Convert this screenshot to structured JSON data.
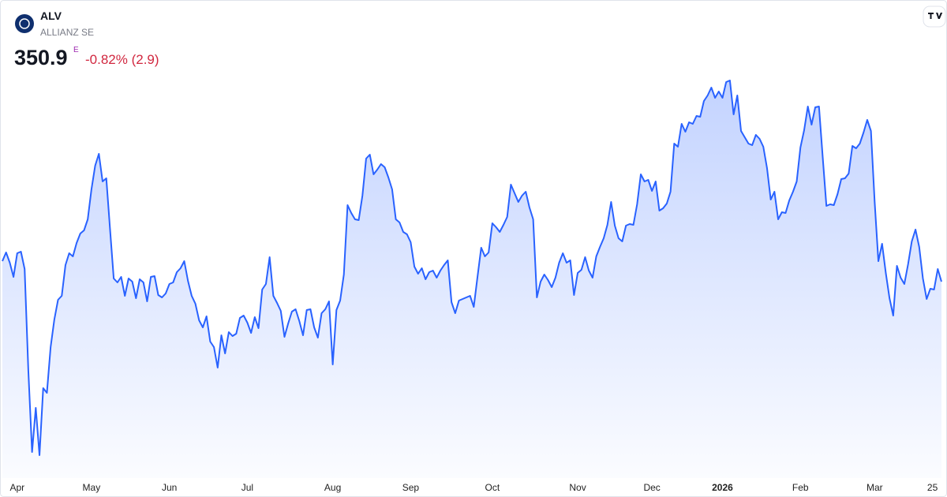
{
  "chart_data": {
    "type": "area",
    "title": "ALV",
    "subtitle": "ALLIANZ SE",
    "last_price": 350.9,
    "price_flag": "E",
    "change": "-0.82% (2.9)",
    "series": [
      {
        "color": "#2962ff",
        "values": [
          356.1,
          358.3,
          355.7,
          352.1,
          358.1,
          358.5,
          354.1,
          328.3,
          307.7,
          318.9,
          306.9,
          323.9,
          322.7,
          334.3,
          341.3,
          346.3,
          347.3,
          355.1,
          358.1,
          357.3,
          360.7,
          363.1,
          363.9,
          366.7,
          374.3,
          380.3,
          383.3,
          376.3,
          377.1,
          364.3,
          351.7,
          350.7,
          352.1,
          347.3,
          351.7,
          350.9,
          346.7,
          351.5,
          350.7,
          345.9,
          352.1,
          352.3,
          347.5,
          346.9,
          347.9,
          350.3,
          350.7,
          353.3,
          354.3,
          356.1,
          351.1,
          347.3,
          345.3,
          341.1,
          339.3,
          342.1,
          335.7,
          334.3,
          329.1,
          337.3,
          332.7,
          338.1,
          337.1,
          337.7,
          341.7,
          342.3,
          340.5,
          337.9,
          341.9,
          339.1,
          348.9,
          350.3,
          357.1,
          347.3,
          345.5,
          343.5,
          336.9,
          340.3,
          343.3,
          343.9,
          340.9,
          337.3,
          343.7,
          343.9,
          339.3,
          336.7,
          342.9,
          343.9,
          345.9,
          329.9,
          343.7,
          346.1,
          352.7,
          370.3,
          368.3,
          366.7,
          366.5,
          372.7,
          382.1,
          383.1,
          378.1,
          379.3,
          380.7,
          379.9,
          377.3,
          374.3,
          366.7,
          365.9,
          363.5,
          362.9,
          360.9,
          354.7,
          352.9,
          354.3,
          351.5,
          353.3,
          353.7,
          351.9,
          353.7,
          355.1,
          356.3,
          345.7,
          342.9,
          346.1,
          346.5,
          346.9,
          347.3,
          344.5,
          352.1,
          359.5,
          357.3,
          358.3,
          365.7,
          364.7,
          363.5,
          365.3,
          367.3,
          375.5,
          373.3,
          371.1,
          372.7,
          373.7,
          369.7,
          366.7,
          346.9,
          350.9,
          352.7,
          351.3,
          349.5,
          351.9,
          355.7,
          358.1,
          355.7,
          356.3,
          347.5,
          353.1,
          353.9,
          357.1,
          353.7,
          351.9,
          357.3,
          359.7,
          361.9,
          365.3,
          371.1,
          365.1,
          361.9,
          361.1,
          365.1,
          365.5,
          365.3,
          370.5,
          378.1,
          376.3,
          376.7,
          373.9,
          376.3,
          368.9,
          369.5,
          370.7,
          373.7,
          385.9,
          385.1,
          390.9,
          388.9,
          391.3,
          390.9,
          392.9,
          392.7,
          396.7,
          398.1,
          400.1,
          397.5,
          399.1,
          397.5,
          401.5,
          401.9,
          393.3,
          398.1,
          389.1,
          387.5,
          385.9,
          385.5,
          388.1,
          387.1,
          385.1,
          379.7,
          371.7,
          373.7,
          366.7,
          368.5,
          368.3,
          371.5,
          373.7,
          376.3,
          384.9,
          389.3,
          395.3,
          390.7,
          395.1,
          395.3,
          382.5,
          370.1,
          370.5,
          370.3,
          373.1,
          376.9,
          377.1,
          378.3,
          385.3,
          384.7,
          385.9,
          388.7,
          391.9,
          389.1,
          371.1,
          356.1,
          360.5,
          353.1,
          346.7,
          342.3,
          354.9,
          351.9,
          350.3,
          355.3,
          361.1,
          364.1,
          359.7,
          351.7,
          346.5,
          349.1,
          348.9,
          354.1,
          350.9
        ]
      }
    ],
    "ylim": [
      302.3,
      404.3
    ],
    "xticks": [
      {
        "value": 4,
        "label": "Apr"
      },
      {
        "value": 24,
        "label": "May"
      },
      {
        "value": 45,
        "label": "Jun"
      },
      {
        "value": 66,
        "label": "Jul"
      },
      {
        "value": 89,
        "label": "Aug"
      },
      {
        "value": 110,
        "label": "Sep"
      },
      {
        "value": 132,
        "label": "Oct"
      },
      {
        "value": 155,
        "label": "Nov"
      },
      {
        "value": 175,
        "label": "Dec"
      },
      {
        "value": 194,
        "label": "2026",
        "bold": true
      },
      {
        "value": 215,
        "label": "Feb"
      },
      {
        "value": 235,
        "label": "Mar"
      },
      {
        "value": 252,
        "label": "25"
      }
    ]
  }
}
